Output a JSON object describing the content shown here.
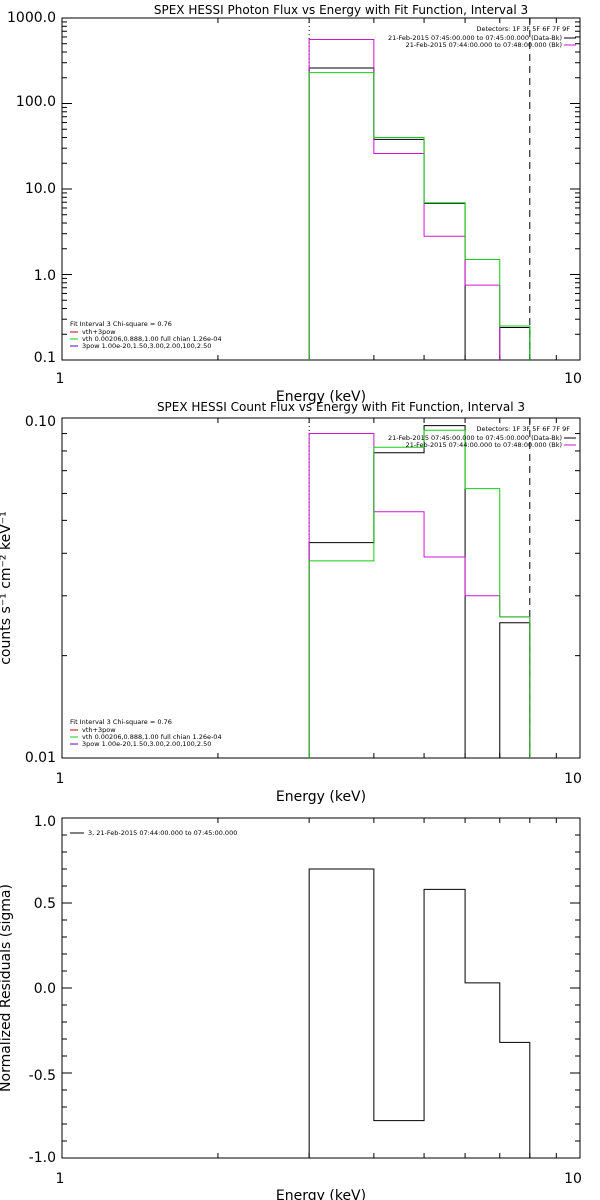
{
  "colors": {
    "black": "#000000",
    "magenta": "#d214d2",
    "green": "#11d011",
    "red": "#d00000",
    "purple": "#6000c0"
  },
  "chart_data": [
    {
      "type": "line",
      "title": "SPEX HESSI Photon Flux vs Energy with Fit Function, Interval 3",
      "xlabel": "Energy (keV)",
      "ylabel": "",
      "xscale": "log",
      "yscale": "log",
      "xlim": [
        1,
        10
      ],
      "ylim": [
        0.1,
        1000
      ],
      "x_tick_labels": [
        "1",
        "10"
      ],
      "y_tick_labels": [
        "1000.0",
        "100.0",
        "10.0",
        "1.0",
        "0.1"
      ],
      "bin_edges": [
        3,
        4,
        5,
        6,
        7,
        8
      ],
      "series": [
        {
          "name": "21-Feb-2015 07:45:00.000 to 07:45:00.000 (Data-Bk)",
          "color": "black",
          "values": [
            260,
            38,
            6.8,
            null,
            0.24
          ]
        },
        {
          "name": "21-Feb-2015 07:44:00.000 to 07:48:00.000 (Bk)",
          "color": "magenta",
          "values": [
            560,
            26,
            2.8,
            0.75,
            null
          ]
        },
        {
          "name": "vth 0.00206,0.888,1.00  full chian 1.26e-04",
          "color": "green",
          "values": [
            230,
            40,
            6.9,
            1.5,
            0.25
          ]
        }
      ],
      "vlines": [
        {
          "x": 3,
          "style": "dotted"
        },
        {
          "x": 8,
          "style": "dashed"
        }
      ],
      "detectors": "Detectors: 1F 3F 5F 6F 7F 9F",
      "top_legend": [
        {
          "text": "21-Feb-2015 07:45:00.000 to 07:45:00.000 (Data-Bk)",
          "color": "black"
        },
        {
          "text": "21-Feb-2015 07:44:00.000 to 07:48:00.000 (Bk)",
          "color": "magenta"
        }
      ],
      "fit_header": "Fit Interval 3   Chi-square = 0.76",
      "fit_legend": [
        {
          "text": "vth+3pow",
          "color": "red"
        },
        {
          "text": "vth 0.00206,0.888,1.00  full chian 1.26e-04",
          "color": "green"
        },
        {
          "text": "3pow 1.00e-20,1.50,3.00,2.00,100,2.50",
          "color": "purple"
        }
      ]
    },
    {
      "type": "line",
      "title": "SPEX HESSI Count Flux vs Energy with Fit Function, Interval 3",
      "xlabel": "Energy (keV)",
      "ylabel": "counts s⁻¹ cm⁻² keV⁻¹",
      "xscale": "log",
      "yscale": "log",
      "xlim": [
        1,
        10
      ],
      "ylim": [
        0.01,
        0.1
      ],
      "x_tick_labels": [
        "1",
        "10"
      ],
      "y_tick_labels": [
        "0.10",
        "0.01"
      ],
      "bin_edges": [
        3,
        4,
        5,
        6,
        7,
        8
      ],
      "series": [
        {
          "name": "21-Feb-2015 07:45:00.000 to 07:45:00.000 (Data-Bk)",
          "color": "black",
          "values": [
            0.043,
            0.079,
            0.095,
            null,
            0.025
          ]
        },
        {
          "name": "21-Feb-2015 07:44:00.000 to 07:48:00.000 (Bk)",
          "color": "magenta",
          "values": [
            0.09,
            0.053,
            0.039,
            0.03,
            0.026
          ]
        },
        {
          "name": "vth 0.00206,0.888,1.00  full chian 1.26e-04",
          "color": "green",
          "values": [
            0.038,
            0.082,
            0.092,
            0.062,
            0.026
          ]
        }
      ],
      "vlines": [
        {
          "x": 3,
          "style": "dotted"
        },
        {
          "x": 8,
          "style": "dashed"
        }
      ],
      "detectors": "Detectors: 1F 3F 5F 6F 7F 9F",
      "top_legend": [
        {
          "text": "21-Feb-2015 07:45:00.000 to 07:45:00.000 (Data-Bk)",
          "color": "black"
        },
        {
          "text": "21-Feb-2015 07:44:00.000 to 07:48:00.000 (Bk)",
          "color": "magenta"
        }
      ],
      "fit_header": "Fit Interval 3   Chi-square = 0.76",
      "fit_legend": [
        {
          "text": "vth+3pow",
          "color": "red"
        },
        {
          "text": "vth 0.00206,0.888,1.00  full chian 1.26e-04",
          "color": "green"
        },
        {
          "text": "3pow 1.00e-20,1.50,3.00,2.00,100,2.50",
          "color": "purple"
        }
      ]
    },
    {
      "type": "line",
      "title": "",
      "xlabel": "Energy (keV)",
      "ylabel": "Normalized Residuals (sigma)",
      "xscale": "log",
      "yscale": "linear",
      "xlim": [
        1,
        10
      ],
      "ylim": [
        -1.0,
        1.0
      ],
      "x_tick_labels": [
        "1",
        "10"
      ],
      "y_tick_labels": [
        "1.0",
        "0.5",
        "0.0",
        "-0.5",
        "-1.0"
      ],
      "bin_edges": [
        3,
        4,
        5,
        6,
        7,
        8
      ],
      "series": [
        {
          "name": "3, 21-Feb-2015 07:44:00.000 to 07:45:00.000",
          "color": "black",
          "values": [
            0.7,
            -0.78,
            0.58,
            0.03,
            -0.32
          ]
        }
      ],
      "vlines": [],
      "legend": [
        {
          "text": "3, 21-Feb-2015 07:44:00.000 to 07:45:00.000",
          "color": "black"
        }
      ]
    }
  ]
}
